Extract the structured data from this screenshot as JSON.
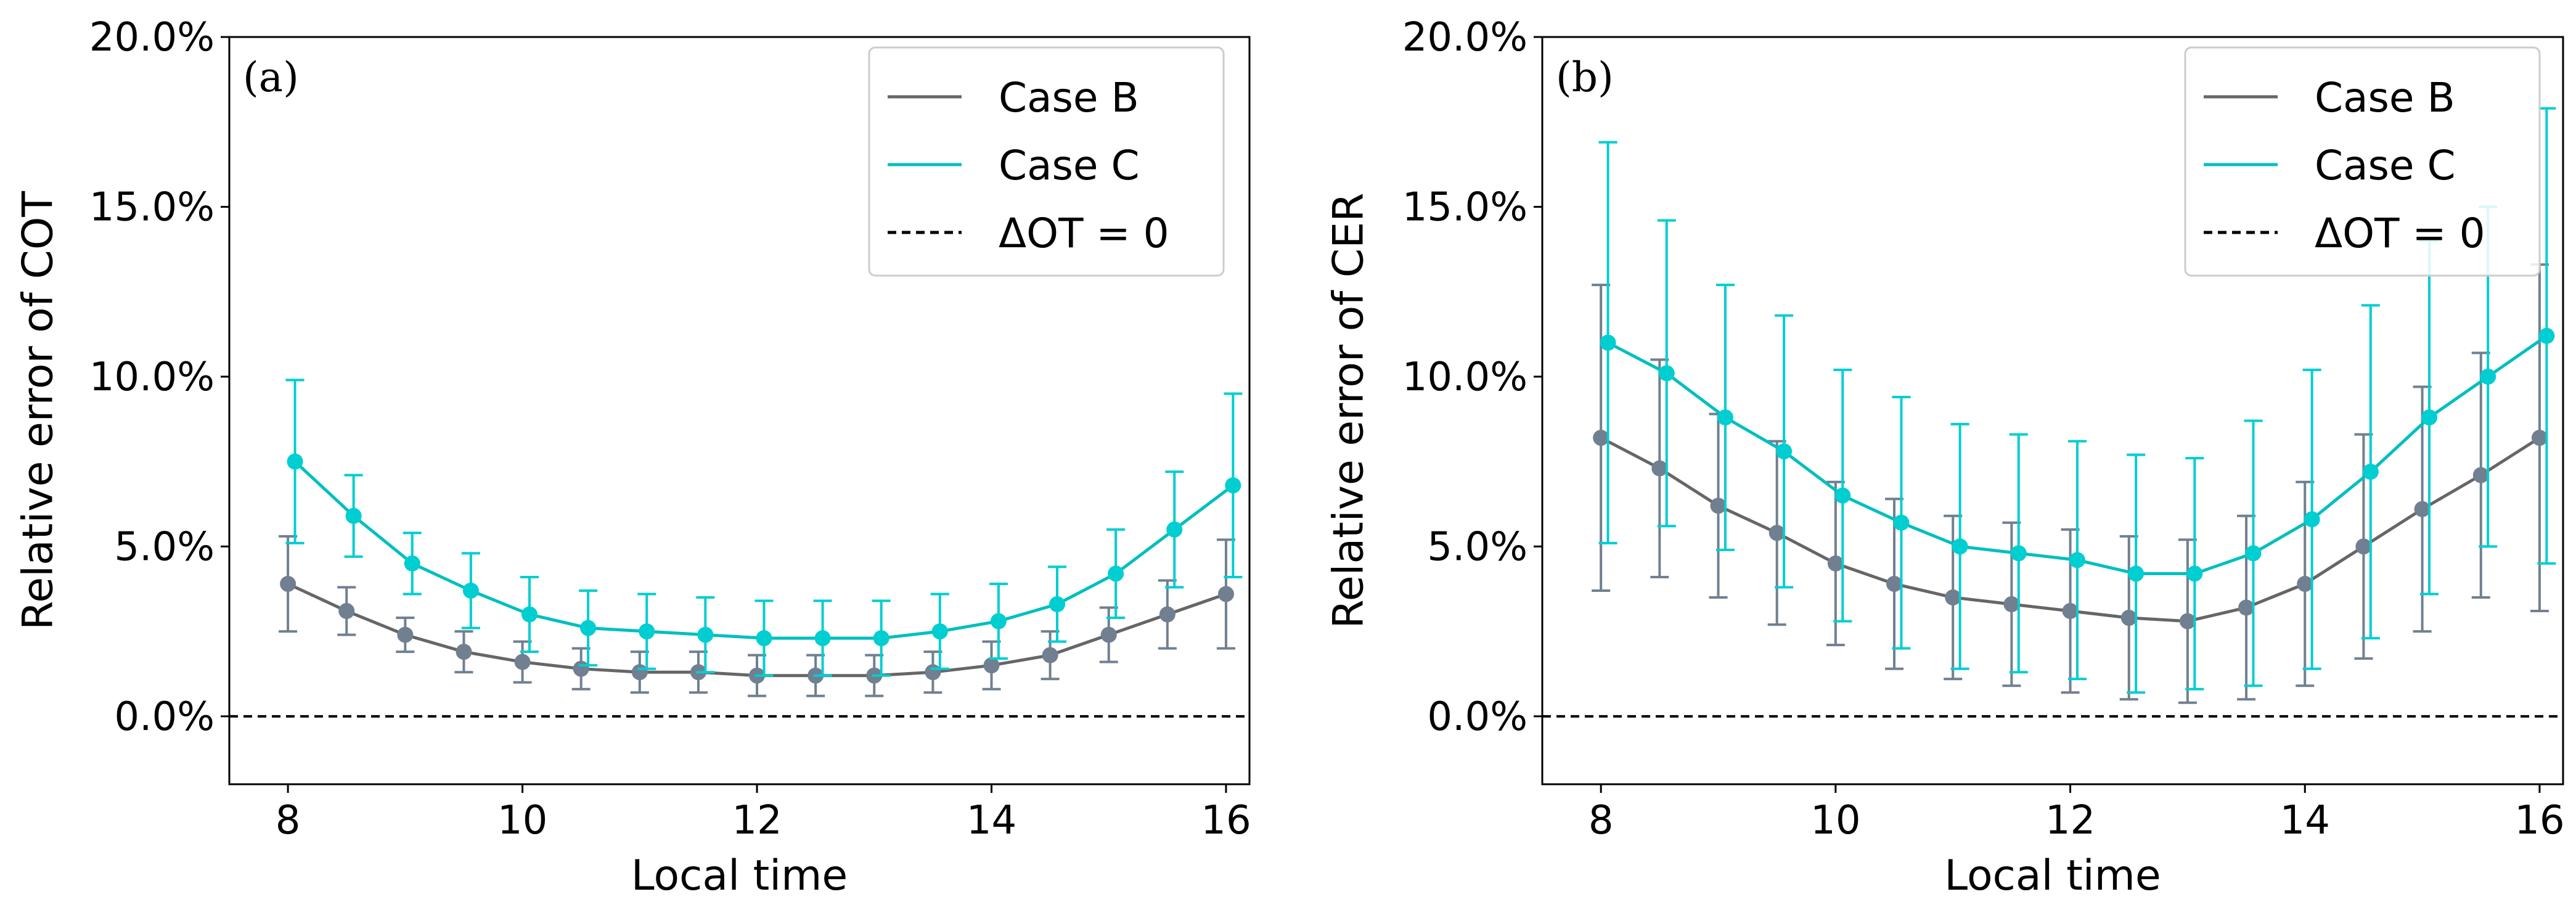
{
  "chart_data": [
    {
      "type": "line",
      "panel_label": "(a)",
      "xlabel": "Local time",
      "ylabel": "Relative error of COT",
      "xlim": [
        7.5,
        16.2
      ],
      "ylim": [
        -0.02,
        0.2
      ],
      "xticks": [
        8,
        10,
        12,
        14,
        16
      ],
      "xtick_labels": [
        "8",
        "10",
        "12",
        "14",
        "16"
      ],
      "yticks": [
        0.0,
        0.05,
        0.1,
        0.15,
        0.2
      ],
      "ytick_labels": [
        "0.0%",
        "5.0%",
        "10.0%",
        "15.0%",
        "20.0%"
      ],
      "legend_position": "top-right",
      "reference_line": {
        "label": "ΔOT = 0",
        "y": 0
      },
      "series": [
        {
          "name": "Case B",
          "line_color": "#666666",
          "marker_color": "#708090",
          "x_offset": 0,
          "x": [
            8,
            8.5,
            9,
            9.5,
            10,
            10.5,
            11,
            11.5,
            12,
            12.5,
            13,
            13.5,
            14,
            14.5,
            15,
            15.5,
            16
          ],
          "y": [
            0.039,
            0.031,
            0.024,
            0.019,
            0.016,
            0.014,
            0.013,
            0.013,
            0.012,
            0.012,
            0.012,
            0.013,
            0.015,
            0.018,
            0.024,
            0.03,
            0.036
          ],
          "err": [
            0.014,
            0.007,
            0.005,
            0.006,
            0.006,
            0.006,
            0.006,
            0.006,
            0.006,
            0.006,
            0.006,
            0.006,
            0.007,
            0.007,
            0.008,
            0.01,
            0.016
          ]
        },
        {
          "name": "Case C",
          "line_color": "#00BFBF",
          "marker_color": "#00CED1",
          "x_offset": 0.06,
          "x": [
            8,
            8.5,
            9,
            9.5,
            10,
            10.5,
            11,
            11.5,
            12,
            12.5,
            13,
            13.5,
            14,
            14.5,
            15,
            15.5,
            16
          ],
          "y": [
            0.075,
            0.059,
            0.045,
            0.037,
            0.03,
            0.026,
            0.025,
            0.024,
            0.023,
            0.023,
            0.023,
            0.025,
            0.028,
            0.033,
            0.042,
            0.055,
            0.068
          ],
          "err": [
            0.024,
            0.012,
            0.009,
            0.011,
            0.011,
            0.011,
            0.011,
            0.011,
            0.011,
            0.011,
            0.011,
            0.011,
            0.011,
            0.011,
            0.013,
            0.017,
            0.027
          ]
        }
      ]
    },
    {
      "type": "line",
      "panel_label": "(b)",
      "xlabel": "Local time",
      "ylabel": "Relative error of CER",
      "xlim": [
        7.5,
        16.2
      ],
      "ylim": [
        -0.02,
        0.2
      ],
      "xticks": [
        8,
        10,
        12,
        14,
        16
      ],
      "xtick_labels": [
        "8",
        "10",
        "12",
        "14",
        "16"
      ],
      "yticks": [
        0.0,
        0.05,
        0.1,
        0.15,
        0.2
      ],
      "ytick_labels": [
        "0.0%",
        "5.0%",
        "10.0%",
        "15.0%",
        "20.0%"
      ],
      "legend_position": "top-right",
      "reference_line": {
        "label": "ΔOT = 0",
        "y": 0
      },
      "series": [
        {
          "name": "Case B",
          "line_color": "#666666",
          "marker_color": "#708090",
          "x_offset": 0,
          "x": [
            8,
            8.5,
            9,
            9.5,
            10,
            10.5,
            11,
            11.5,
            12,
            12.5,
            13,
            13.5,
            14,
            14.5,
            15,
            15.5,
            16
          ],
          "y": [
            0.082,
            0.073,
            0.062,
            0.054,
            0.045,
            0.039,
            0.035,
            0.033,
            0.031,
            0.029,
            0.028,
            0.032,
            0.039,
            0.05,
            0.061,
            0.071,
            0.082
          ],
          "err": [
            0.045,
            0.032,
            0.027,
            0.027,
            0.024,
            0.025,
            0.024,
            0.024,
            0.024,
            0.024,
            0.024,
            0.027,
            0.03,
            0.033,
            0.036,
            0.036,
            0.051
          ]
        },
        {
          "name": "Case C",
          "line_color": "#00BFBF",
          "marker_color": "#00CED1",
          "x_offset": 0.06,
          "x": [
            8,
            8.5,
            9,
            9.5,
            10,
            10.5,
            11,
            11.5,
            12,
            12.5,
            13,
            13.5,
            14,
            14.5,
            15,
            15.5,
            16
          ],
          "y": [
            0.11,
            0.101,
            0.088,
            0.078,
            0.065,
            0.057,
            0.05,
            0.048,
            0.046,
            0.042,
            0.042,
            0.048,
            0.058,
            0.072,
            0.088,
            0.1,
            0.112
          ],
          "err": [
            0.059,
            0.045,
            0.039,
            0.04,
            0.037,
            0.037,
            0.036,
            0.035,
            0.035,
            0.035,
            0.034,
            0.039,
            0.044,
            0.049,
            0.052,
            0.05,
            0.067
          ]
        }
      ]
    }
  ]
}
